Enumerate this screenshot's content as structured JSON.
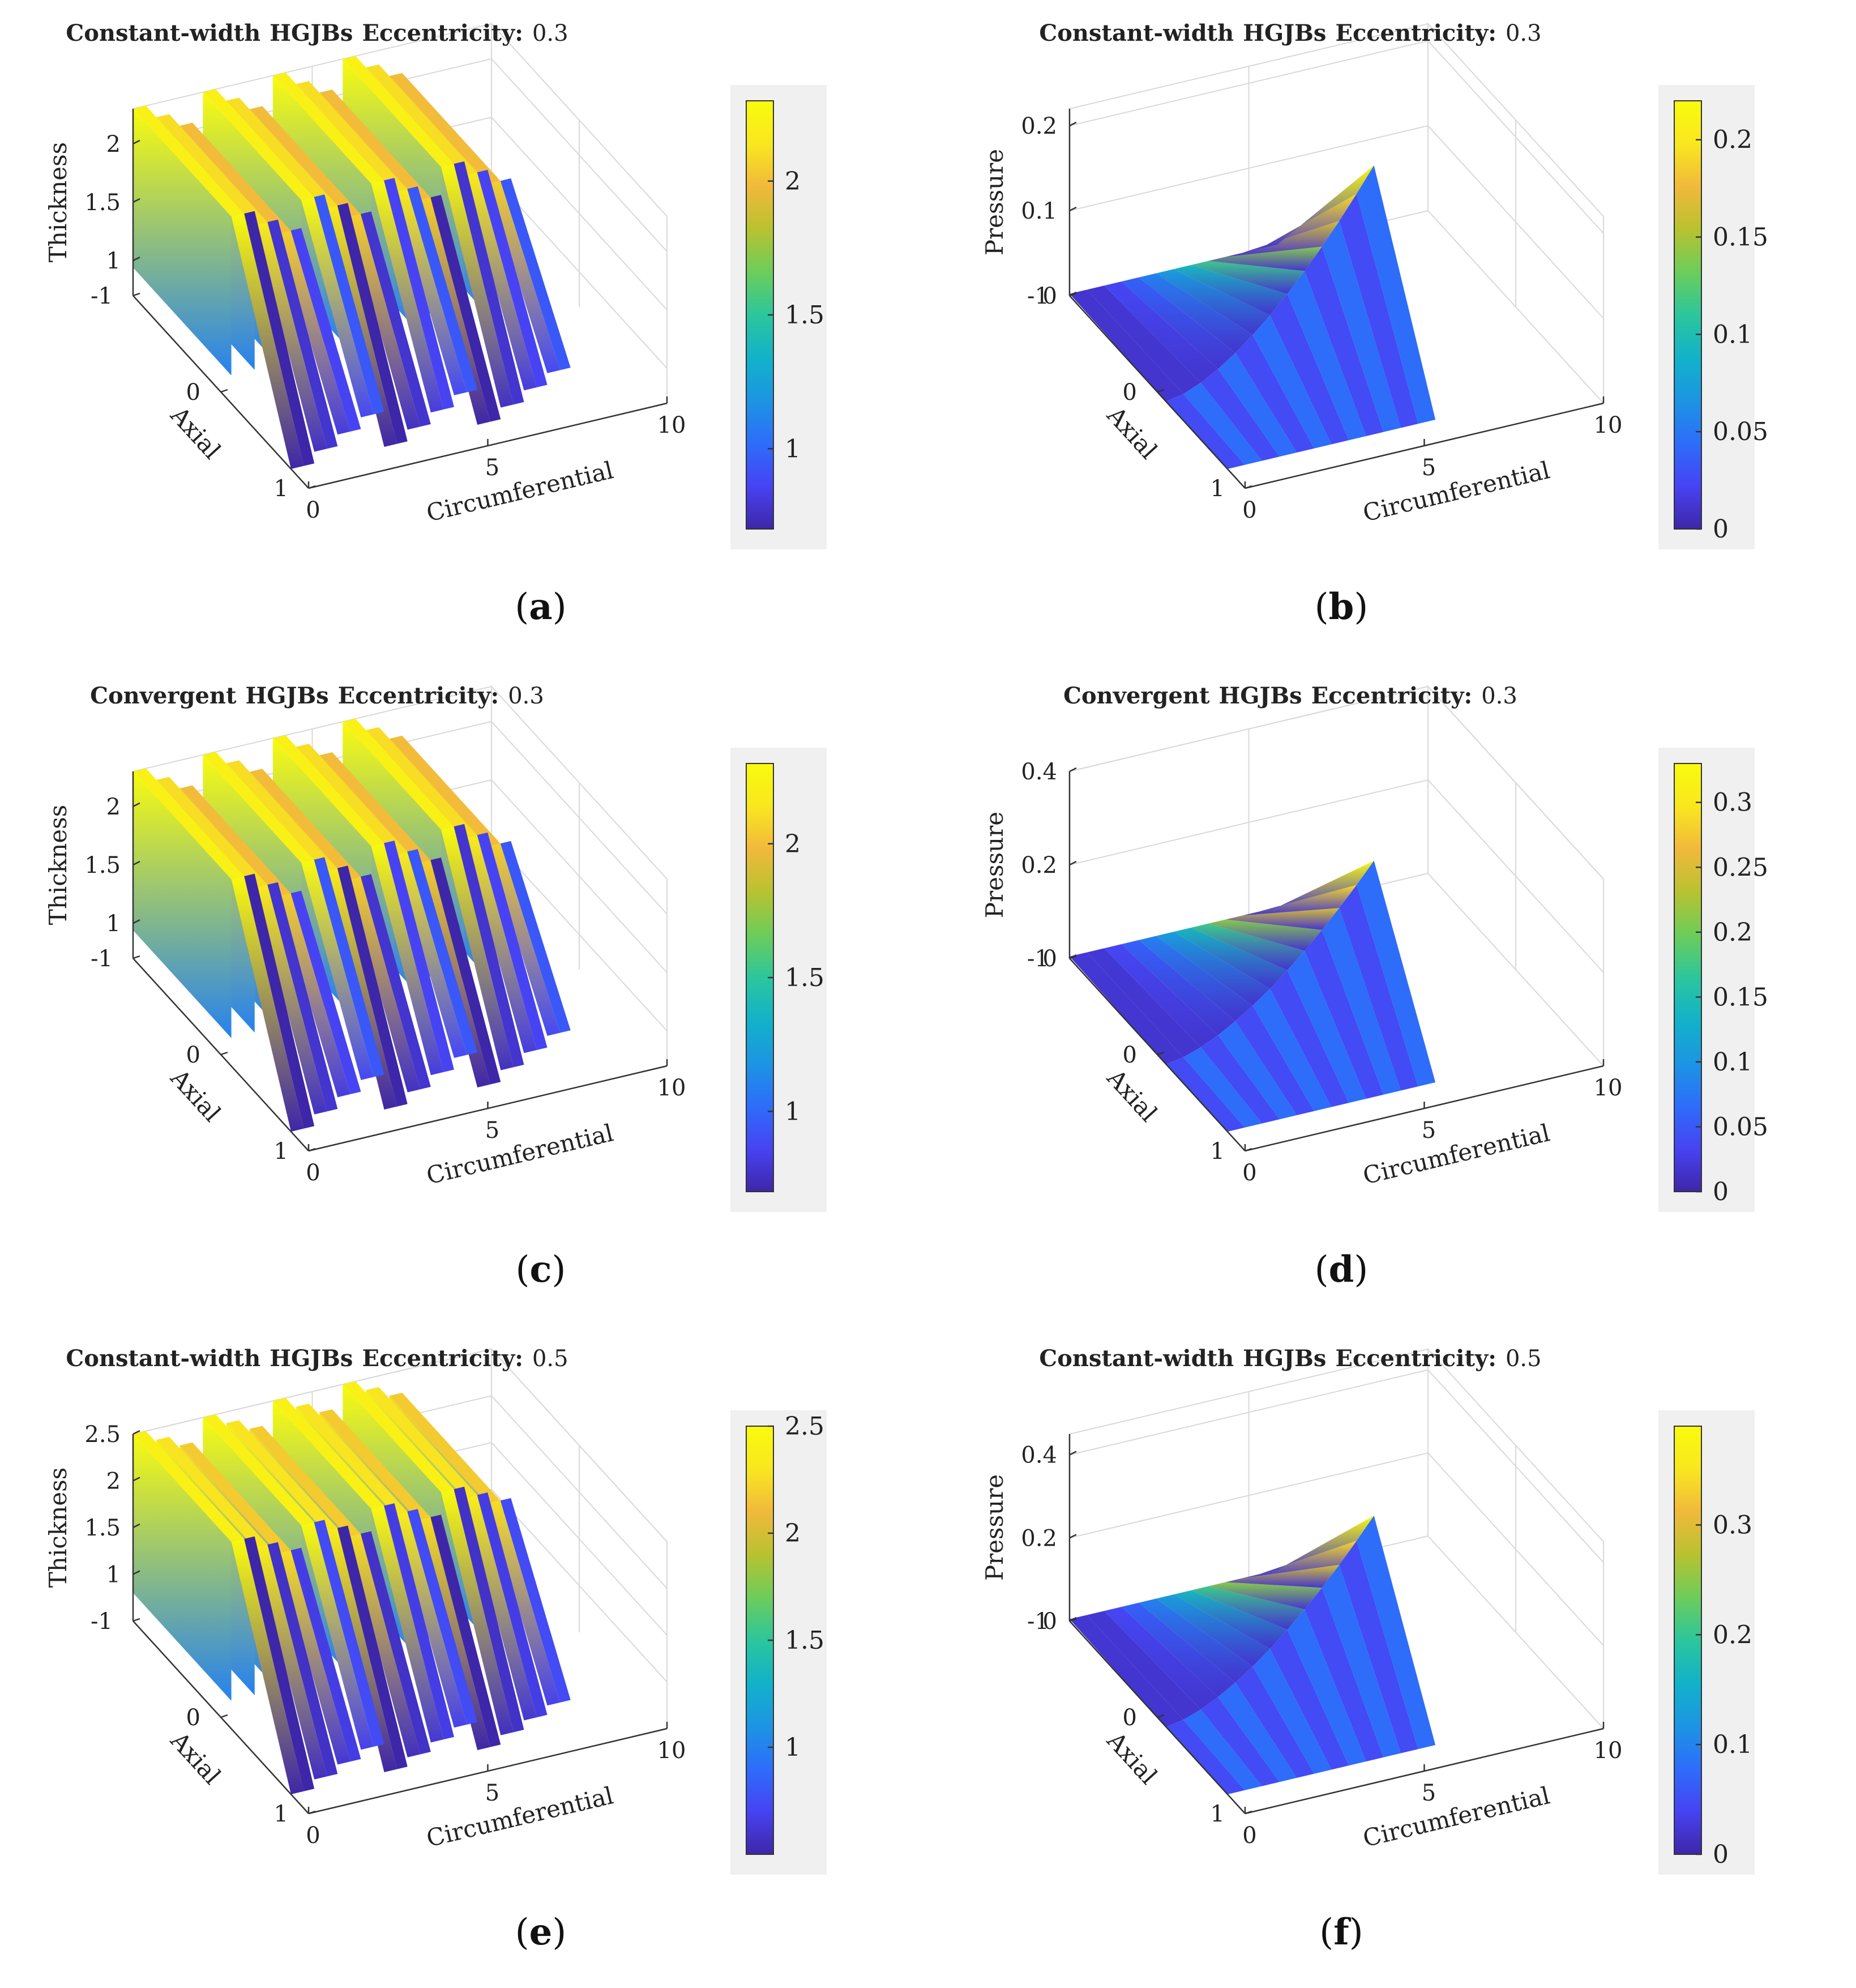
{
  "colormap": [
    "#3e26a8",
    "#4743f3",
    "#2d6dfa",
    "#1c95e3",
    "#12b2c9",
    "#2cc69c",
    "#6ccd5a",
    "#b8c230",
    "#f1b93c",
    "#f9e71e",
    "#f9fb0e"
  ],
  "chart_data": [
    {
      "type": "surface",
      "panel": "a",
      "caption_letter": "a",
      "title_parts": [
        "Constant-width",
        "HGJBs",
        "Eccentricity:",
        "0.3"
      ],
      "zlabel": "Thickness",
      "xlabel": "Circumferential",
      "ylabel": "Axial",
      "x_ticks": [
        "0",
        "5",
        "10"
      ],
      "y_ticks": [
        "-1",
        "0",
        "1"
      ],
      "z_ticks": [
        "1",
        "1.5",
        "2"
      ],
      "zlim": [
        0.7,
        2.3
      ],
      "colorbar_ticks": [
        "1",
        "1.5",
        "2"
      ],
      "clim": [
        0.7,
        2.3
      ],
      "grooves": 12,
      "groove_high": 2.3,
      "groove_low": 0.7
    },
    {
      "type": "surface",
      "panel": "b",
      "caption_letter": "b",
      "title_parts": [
        "Constant-width",
        "HGJBs",
        "Eccentricity:",
        "0.3"
      ],
      "zlabel": "Pressure",
      "xlabel": "Circumferential",
      "ylabel": "Axial",
      "x_ticks": [
        "0",
        "5",
        "10"
      ],
      "y_ticks": [
        "-1",
        "0",
        "1"
      ],
      "z_ticks": [
        "0",
        "0.1",
        "0.2"
      ],
      "zlim": [
        0,
        0.22
      ],
      "colorbar_ticks": [
        "0",
        "0.05",
        "0.1",
        "0.15",
        "0.2"
      ],
      "clim": [
        0,
        0.22
      ],
      "peak_value": 0.22
    },
    {
      "type": "surface",
      "panel": "c",
      "caption_letter": "c",
      "title_parts": [
        "Convergent",
        "HGJBs",
        "Eccentricity:",
        "0.3"
      ],
      "zlabel": "Thickness",
      "xlabel": "Circumferential",
      "ylabel": "Axial",
      "x_ticks": [
        "0",
        "5",
        "10"
      ],
      "y_ticks": [
        "-1",
        "0",
        "1"
      ],
      "z_ticks": [
        "1",
        "1.5",
        "2"
      ],
      "zlim": [
        0.7,
        2.3
      ],
      "colorbar_ticks": [
        "1",
        "1.5",
        "2"
      ],
      "clim": [
        0.7,
        2.3
      ],
      "grooves": 12,
      "groove_high": 2.3,
      "groove_low": 0.7
    },
    {
      "type": "surface",
      "panel": "d",
      "caption_letter": "d",
      "title_parts": [
        "Convergent",
        "HGJBs",
        "Eccentricity:",
        "0.3"
      ],
      "zlabel": "Pressure",
      "xlabel": "Circumferential",
      "ylabel": "Axial",
      "x_ticks": [
        "0",
        "5",
        "10"
      ],
      "y_ticks": [
        "-1",
        "0",
        "1"
      ],
      "z_ticks": [
        "0",
        "0.2",
        "0.4"
      ],
      "zlim": [
        0,
        0.4
      ],
      "colorbar_ticks": [
        "0",
        "0.05",
        "0.1",
        "0.15",
        "0.2",
        "0.25",
        "0.3"
      ],
      "clim": [
        0,
        0.33
      ],
      "peak_value": 0.33
    },
    {
      "type": "surface",
      "panel": "e",
      "caption_letter": "e",
      "title_parts": [
        "Constant-width",
        "HGJBs",
        "Eccentricity:",
        "0.5"
      ],
      "zlabel": "Thickness",
      "xlabel": "Circumferential",
      "ylabel": "Axial",
      "x_ticks": [
        "0",
        "5",
        "10"
      ],
      "y_ticks": [
        "-1",
        "0",
        "1"
      ],
      "z_ticks": [
        "1",
        "1.5",
        "2",
        "2.5"
      ],
      "zlim": [
        0.5,
        2.5
      ],
      "colorbar_ticks": [
        "1",
        "1.5",
        "2",
        "2.5"
      ],
      "clim": [
        0.5,
        2.5
      ],
      "grooves": 12,
      "groove_high": 2.5,
      "groove_low": 0.5
    },
    {
      "type": "surface",
      "panel": "f",
      "caption_letter": "f",
      "title_parts": [
        "Constant-width",
        "HGJBs",
        "Eccentricity:",
        "0.5"
      ],
      "zlabel": "Pressure",
      "xlabel": "Circumferential",
      "ylabel": "Axial",
      "x_ticks": [
        "0",
        "5",
        "10"
      ],
      "y_ticks": [
        "-1",
        "0",
        "1"
      ],
      "z_ticks": [
        "0",
        "0.2",
        "0.4"
      ],
      "zlim": [
        0,
        0.45
      ],
      "colorbar_ticks": [
        "0",
        "0.1",
        "0.2",
        "0.3"
      ],
      "clim": [
        0,
        0.39
      ],
      "peak_value": 0.39
    }
  ]
}
